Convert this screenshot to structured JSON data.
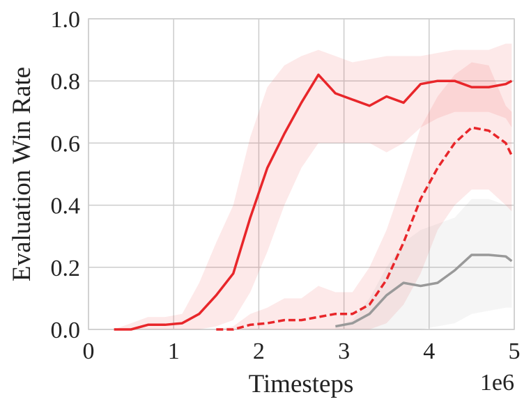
{
  "chart_data": {
    "type": "line",
    "xlabel": "Timesteps",
    "ylabel": "Evaluation Win Rate",
    "x_offset_label": "1e6",
    "x": [
      0.3,
      0.5,
      0.7,
      0.9,
      1.1,
      1.3,
      1.5,
      1.7,
      1.9,
      2.1,
      2.3,
      2.5,
      2.7,
      2.9,
      3.1,
      3.3,
      3.5,
      3.7,
      3.9,
      4.1,
      4.3,
      4.5,
      4.7,
      4.9,
      4.97
    ],
    "series": [
      {
        "color": "#e8262a",
        "linestyle": "solid",
        "values": [
          0,
          0,
          0.015,
          0.015,
          0.02,
          0.05,
          0.11,
          0.18,
          0.36,
          0.52,
          0.63,
          0.73,
          0.82,
          0.76,
          0.74,
          0.72,
          0.75,
          0.73,
          0.79,
          0.8,
          0.8,
          0.78,
          0.78,
          0.79,
          0.8
        ],
        "lower": [
          0,
          0,
          0,
          0,
          0,
          0,
          0.01,
          0.03,
          0.12,
          0.25,
          0.4,
          0.52,
          0.6,
          0.6,
          0.6,
          0.6,
          0.57,
          0.6,
          0.65,
          0.68,
          0.7,
          0.7,
          0.7,
          0.68,
          0.65
        ],
        "upper": [
          0,
          0.02,
          0.04,
          0.04,
          0.05,
          0.15,
          0.28,
          0.4,
          0.62,
          0.78,
          0.85,
          0.88,
          0.9,
          0.88,
          0.86,
          0.87,
          0.88,
          0.88,
          0.88,
          0.89,
          0.9,
          0.9,
          0.9,
          0.92,
          0.92
        ]
      },
      {
        "color": "#e8262a",
        "linestyle": "dashed",
        "values": [
          null,
          null,
          null,
          null,
          null,
          null,
          0,
          0,
          0.015,
          0.02,
          0.03,
          0.03,
          0.04,
          0.05,
          0.05,
          0.08,
          0.16,
          0.28,
          0.42,
          0.52,
          0.6,
          0.65,
          0.64,
          0.6,
          0.56
        ],
        "lower": [
          null,
          null,
          null,
          null,
          null,
          null,
          0,
          0,
          0,
          0,
          0,
          0,
          0,
          0,
          0,
          0,
          0.02,
          0.08,
          0.18,
          0.32,
          0.4,
          0.45,
          0.45,
          0.4,
          0.38
        ],
        "upper": [
          null,
          null,
          null,
          null,
          null,
          null,
          0,
          0.01,
          0.05,
          0.07,
          0.1,
          0.1,
          0.14,
          0.12,
          0.12,
          0.2,
          0.32,
          0.48,
          0.65,
          0.75,
          0.82,
          0.86,
          0.85,
          0.72,
          0.7
        ]
      },
      {
        "color": "#999999",
        "linestyle": "solid",
        "values": [
          null,
          null,
          null,
          null,
          null,
          null,
          null,
          null,
          null,
          null,
          null,
          null,
          null,
          0.01,
          0.02,
          0.05,
          0.11,
          0.15,
          0.14,
          0.15,
          0.19,
          0.24,
          0.24,
          0.235,
          0.22
        ],
        "lower": [
          null,
          null,
          null,
          null,
          null,
          null,
          null,
          null,
          null,
          null,
          null,
          null,
          null,
          0,
          0,
          0,
          0,
          0,
          0,
          0.01,
          0.02,
          0.05,
          0.06,
          0.07,
          0.07
        ],
        "upper": [
          null,
          null,
          null,
          null,
          null,
          null,
          null,
          null,
          null,
          null,
          null,
          null,
          null,
          0.01,
          0.03,
          0.1,
          0.2,
          0.28,
          0.32,
          0.34,
          0.36,
          0.42,
          0.42,
          0.4,
          0.4
        ]
      }
    ],
    "xlim": [
      0,
      5
    ],
    "xticks": [
      0,
      1,
      2,
      3,
      4,
      5
    ],
    "ylim": [
      0,
      1
    ],
    "yticks": [
      {
        "value": 0,
        "label": "0.0"
      },
      0.2,
      0.4,
      0.6,
      0.8,
      {
        "value": 1,
        "label": "1.0"
      }
    ],
    "grid": true
  }
}
